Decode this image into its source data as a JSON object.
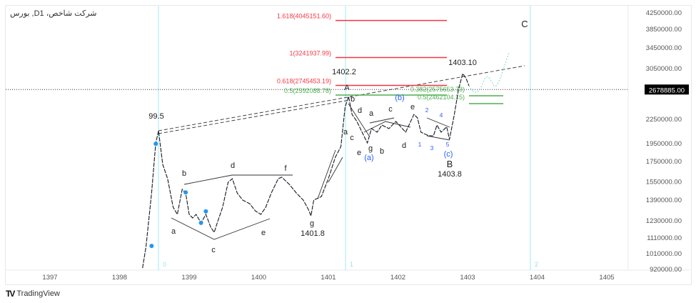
{
  "header": {
    "title": "بورس ,Dشرکت شاخص، 1",
    "brand": "TradingView"
  },
  "chart_data": {
    "type": "line",
    "title": "بورس ,Dشرکت شاخص، 1",
    "scale": "log",
    "ylim": [
      920000,
      4250000
    ],
    "xlim": [
      1396.6,
      1405.9
    ],
    "x_ticks": [
      "1397",
      "1398",
      "1399",
      "1400",
      "1401",
      "1402",
      "1403",
      "1404",
      "1405"
    ],
    "y_ticks": [
      "4250000.00",
      "3850000.00",
      "3450000.00",
      "3050000.00",
      "2250000.00",
      "1950000.00",
      "1750000.00",
      "1550000.00",
      "1390000.00",
      "1230000.00",
      "1110000.00",
      "1010000.00",
      "920000.00"
    ],
    "current_price": "2678885.00",
    "colors": {
      "fib_red": "#f23645",
      "fib_green": "#4caf50",
      "wave_blue": "#2962ff",
      "cycle_line": "#b2ebf2",
      "price": "#131722"
    },
    "series": [
      {
        "name": "price",
        "x": [
          1398.33,
          1398.38,
          1398.46,
          1398.52,
          1398.56,
          1398.62,
          1398.69,
          1398.74,
          1398.77,
          1398.83,
          1398.9,
          1398.95,
          1399.0,
          1399.05,
          1399.1,
          1399.17,
          1399.24,
          1399.31,
          1399.36,
          1399.41,
          1399.48,
          1399.56,
          1399.62,
          1399.69,
          1399.77,
          1399.87,
          1399.95,
          1400.03,
          1400.1,
          1400.18,
          1400.28,
          1400.33,
          1400.44,
          1400.54,
          1400.64,
          1400.71,
          1400.75,
          1400.79,
          1400.9,
          1401.0,
          1401.1,
          1401.18,
          1401.24,
          1401.29,
          1401.34,
          1401.41,
          1401.51,
          1401.56,
          1401.62,
          1401.7,
          1401.77,
          1401.87,
          1401.97,
          1402.11,
          1402.23,
          1402.28,
          1402.33,
          1402.44,
          1402.51,
          1402.56,
          1402.62,
          1402.7,
          1402.74,
          1402.81,
          1402.87,
          1402.93,
          1402.98,
          1403.02
        ],
        "y": [
          924000,
          1050000,
          1445000,
          1948000,
          2094000,
          1714000,
          1574000,
          1415000,
          1327000,
          1272000,
          1477000,
          1445000,
          1272000,
          1245000,
          1272000,
          1209000,
          1272000,
          1178000,
          1143000,
          1219000,
          1327000,
          1541000,
          1574000,
          1445000,
          1385000,
          1356000,
          1299000,
          1272000,
          1327000,
          1445000,
          1574000,
          1588000,
          1521000,
          1445000,
          1385000,
          1313000,
          1261000,
          1385000,
          1415000,
          1574000,
          1789000,
          1907000,
          2411000,
          2570000,
          2310000,
          2214000,
          2033000,
          1948000,
          2122000,
          2077000,
          2167000,
          2122000,
          2214000,
          2077000,
          2310000,
          2262000,
          2077000,
          2033000,
          2033000,
          2167000,
          2077000,
          2144000,
          1990000,
          2310000,
          2682000,
          2946000,
          2859000,
          2740000
        ]
      }
    ],
    "fib_levels": [
      {
        "label": "1.618(4045151.60)",
        "value": 4045151.6,
        "color": "red"
      },
      {
        "label": "1(3241937.99)",
        "value": 3241937.99,
        "color": "red"
      },
      {
        "label": "0.618(2745453.19)",
        "value": 2745453.19,
        "color": "red"
      },
      {
        "label": "0.5(2592088.78)",
        "value": 2592088.78,
        "color": "green"
      },
      {
        "label": "0.382(2575653.73)",
        "value": 2575653.73,
        "color": "green"
      },
      {
        "label": "0.5(2462104.15)",
        "value": 2462104.15,
        "color": "green"
      }
    ],
    "annotations": [
      "99.5",
      "b",
      "d",
      "f",
      "a",
      "c",
      "e",
      "g",
      "1401.8",
      "1402.2",
      "A",
      "b",
      "d",
      "a",
      "c",
      "e",
      "a",
      "c",
      "e",
      "g",
      "b",
      "d",
      "(a)",
      "(b)",
      "2",
      "4",
      "1",
      "3",
      "5",
      "(c)",
      "B",
      "1403.8",
      "1403.10",
      "C"
    ],
    "cycle_labels": [
      "0",
      "1",
      "2"
    ]
  }
}
